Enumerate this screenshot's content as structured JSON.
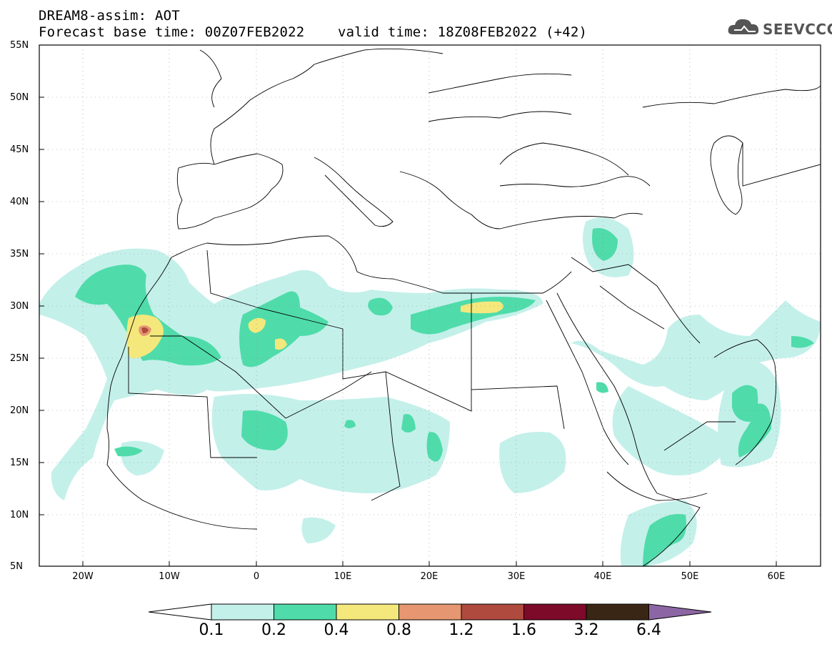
{
  "title": {
    "line1": "DREAM8-assim: AOT",
    "line2": "Forecast base time: 00Z07FEB2022    valid time: 18Z08FEB2022 (+42)"
  },
  "logo": {
    "text": "SEEVCCC",
    "icon": "cloud-icon"
  },
  "map": {
    "lon_range": [
      -25,
      65
    ],
    "lat_range": [
      5,
      55
    ],
    "lat_ticks": [
      "55N",
      "50N",
      "45N",
      "40N",
      "35N",
      "30N",
      "25N",
      "20N",
      "15N",
      "10N",
      "5N"
    ],
    "lon_ticks": [
      "20W",
      "10W",
      "0",
      "10E",
      "20E",
      "30E",
      "40E",
      "50E",
      "60E"
    ],
    "grid": "dotted"
  },
  "colorbar": {
    "labels": [
      "0.1",
      "0.2",
      "0.4",
      "0.8",
      "1.2",
      "1.6",
      "3.2",
      "6.4"
    ],
    "colors": [
      "#ffffff",
      "#c4f0ea",
      "#4fdcaa",
      "#f4e87c",
      "#e69670",
      "#ae4a3e",
      "#7c0a28",
      "#3a2614",
      "#8c66a4"
    ]
  }
}
